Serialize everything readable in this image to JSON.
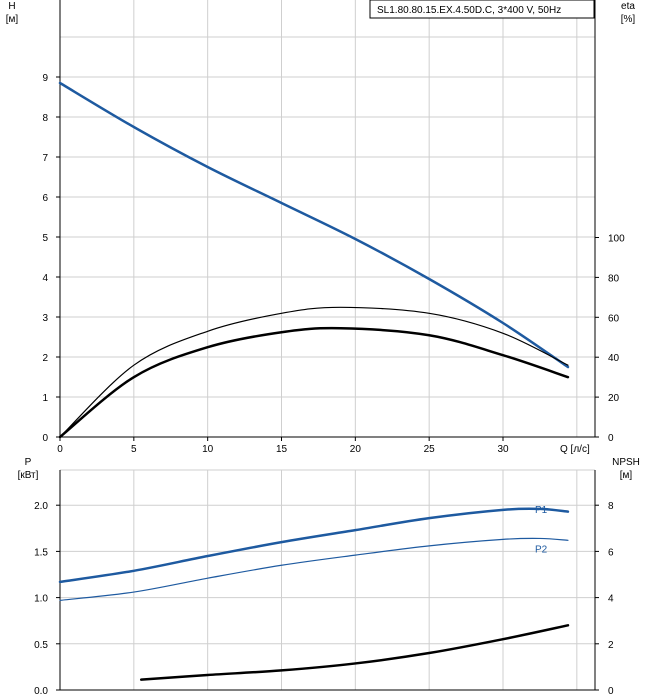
{
  "chart_data": [
    {
      "type": "line",
      "title": "SL1.80.80.15.EX.4.50D.C, 3*400 V, 50Hz",
      "xlabel": "Q [л/с]",
      "ylabel_left": [
        "H",
        "[м]"
      ],
      "ylabel_right": [
        "eta",
        "[%]"
      ],
      "xlim": [
        0,
        35
      ],
      "xticks": [
        0,
        5,
        10,
        15,
        20,
        25,
        30
      ],
      "ylim_left": [
        0,
        10
      ],
      "yticks_left": [
        0,
        1,
        2,
        3,
        4,
        5,
        6,
        7,
        8,
        9
      ],
      "ylim_right": [
        0,
        100
      ],
      "yticks_right": [
        0,
        20,
        40,
        60,
        80,
        100
      ],
      "grid": true,
      "series": [
        {
          "axis": "left",
          "color": "#1e5aa0",
          "width": 2.5,
          "x": [
            0,
            5,
            10,
            15,
            20,
            25,
            30,
            34.4
          ],
          "values": [
            8.85,
            7.75,
            6.75,
            5.85,
            4.95,
            3.95,
            2.85,
            1.75
          ]
        },
        {
          "axis": "right",
          "color": "#000000",
          "width": 1.2,
          "x": [
            0,
            5,
            10,
            15,
            19,
            25,
            30,
            34.4
          ],
          "values": [
            0,
            36,
            53,
            62,
            65,
            62,
            52,
            36
          ]
        },
        {
          "axis": "right",
          "color": "#000000",
          "width": 2.5,
          "x": [
            0,
            5,
            10,
            15,
            19,
            25,
            30,
            34.4
          ],
          "values": [
            0,
            30,
            45,
            52.5,
            54.5,
            51,
            41,
            30
          ]
        }
      ]
    },
    {
      "type": "line",
      "xlabel": "",
      "ylabel_left": [
        "P",
        "[кВт]"
      ],
      "ylabel_right": [
        "NPSH",
        "[м]"
      ],
      "xlim": [
        0,
        35
      ],
      "xticks": [
        0,
        5,
        10,
        15,
        20,
        25,
        30
      ],
      "ylim_left": [
        0,
        2.5
      ],
      "yticks_left": [
        "0.0",
        "0.5",
        "1.0",
        "1.5",
        "2.0"
      ],
      "ylim_right": [
        0,
        10
      ],
      "yticks_right": [
        0,
        2,
        4,
        6,
        8
      ],
      "grid": true,
      "series": [
        {
          "name": "P1",
          "axis": "left",
          "color": "#1e5aa0",
          "width": 2.5,
          "x": [
            0,
            5,
            10,
            15,
            20,
            25,
            30,
            32.5,
            34.4
          ],
          "values": [
            1.17,
            1.29,
            1.45,
            1.6,
            1.73,
            1.86,
            1.95,
            1.96,
            1.93
          ]
        },
        {
          "name": "P2",
          "axis": "left",
          "color": "#1e5aa0",
          "width": 1.2,
          "x": [
            0,
            5,
            10,
            15,
            20,
            25,
            30,
            32.5,
            34.4
          ],
          "values": [
            0.97,
            1.06,
            1.21,
            1.35,
            1.46,
            1.56,
            1.63,
            1.64,
            1.62
          ]
        },
        {
          "axis": "right",
          "color": "#000000",
          "width": 2.5,
          "x": [
            5.5,
            10,
            15,
            20,
            25,
            30,
            34.4
          ],
          "values": [
            0.45,
            0.65,
            0.85,
            1.15,
            1.6,
            2.2,
            2.8
          ]
        }
      ]
    }
  ]
}
